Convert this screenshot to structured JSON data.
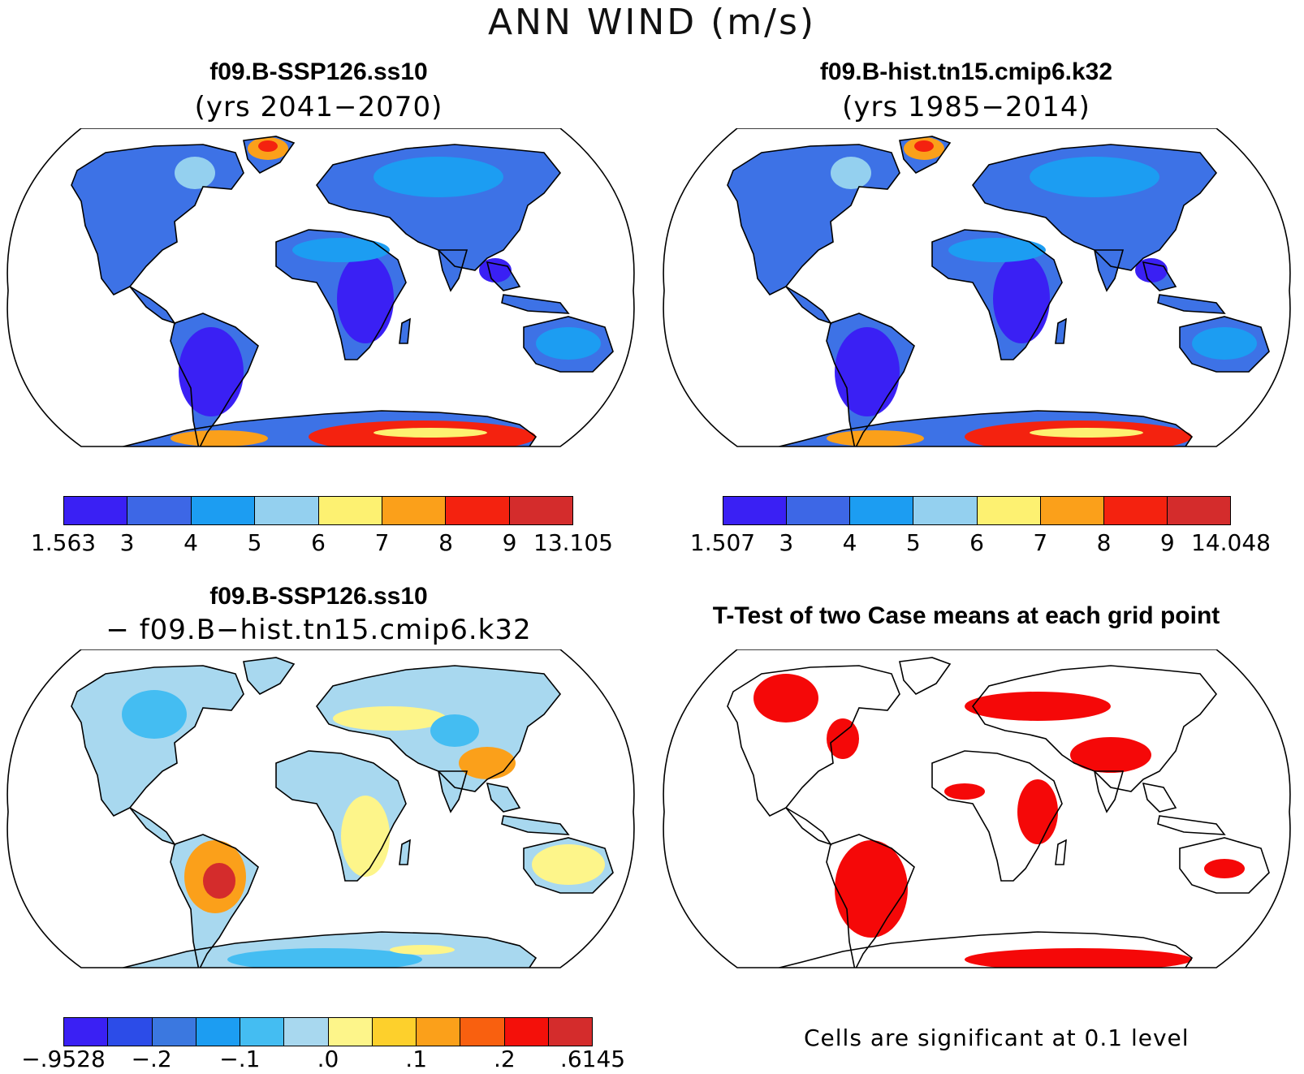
{
  "figure": {
    "title": "ANN WIND (m/s)"
  },
  "panels": [
    {
      "title": "f09.B-SSP126.ss10",
      "subtitle": "(yrs 2041−2070)",
      "kind": "abs_low"
    },
    {
      "title": "f09.B-hist.tn15.cmip6.k32",
      "subtitle": "(yrs 1985−2014)",
      "kind": "abs_low"
    },
    {
      "title": "f09.B-SSP126.ss10",
      "subtitle": "− f09.B−hist.tn15.cmip6.k32",
      "kind": "diff"
    },
    {
      "title": "T-Test of two Case means at each grid point",
      "subtitle": "",
      "kind": "sig"
    }
  ],
  "colorbars": {
    "case1": {
      "colors": [
        "#3a20f4",
        "#3d67e6",
        "#1c9df2",
        "#94d0ef",
        "#fdf171",
        "#fba01a",
        "#f4220f",
        "#d42c2c"
      ],
      "labels": [
        "1.563",
        "3",
        "4",
        "5",
        "6",
        "7",
        "8",
        "9",
        "13.105"
      ]
    },
    "case2": {
      "colors": [
        "#3a20f4",
        "#3d67e6",
        "#1c9df2",
        "#94d0ef",
        "#fdf171",
        "#fba01a",
        "#f4220f",
        "#d42c2c"
      ],
      "labels": [
        "1.507",
        "3",
        "4",
        "5",
        "6",
        "7",
        "8",
        "9",
        "14.048"
      ]
    },
    "diff": {
      "colors": [
        "#3a20f4",
        "#2c4ce8",
        "#3b78e0",
        "#1c9df2",
        "#44bdf2",
        "#a8d8ef",
        "#fdf58a",
        "#fdd02c",
        "#fba01a",
        "#f9600f",
        "#f4100a",
        "#d42c2c"
      ],
      "labels": [
        "−.9528",
        "−.2",
        "−.1",
        ".0",
        ".1",
        ".2",
        ".6145"
      ]
    }
  },
  "significance_note": "Cells are significant at 0.1 level",
  "map_colors": {
    "abs_land": "#3d72e6",
    "abs_low": "#3a20f4",
    "abs_mid": "#1c9df2",
    "abs_light": "#94d0ef",
    "abs_high": "#f4220f",
    "abs_warm": "#fba01a",
    "abs_yellow": "#fdf171",
    "diff_land": "#a8d8ef",
    "diff_yellow": "#fdf58a",
    "diff_orange": "#fba01a",
    "diff_red": "#d42c2c",
    "diff_blue": "#44bdf2",
    "sig": "#f50808"
  }
}
